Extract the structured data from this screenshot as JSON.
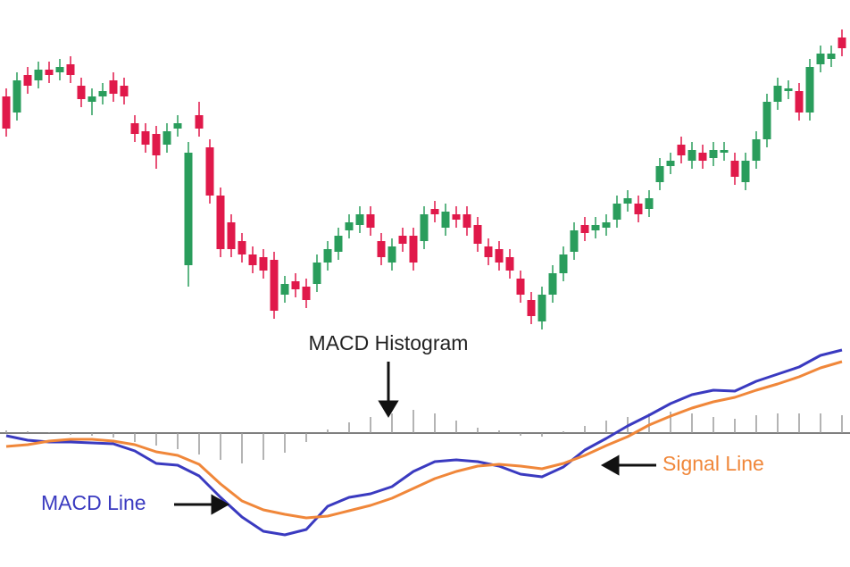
{
  "chart_data": [
    {
      "type": "candlestick",
      "colors": {
        "up": "#2a9d5c",
        "down": "#e0194a"
      },
      "ylim": [
        0,
        110
      ],
      "open": [
        84,
        78,
        92,
        90,
        94,
        93,
        96,
        88,
        82,
        84,
        90,
        88,
        74,
        71,
        70,
        66,
        72,
        21,
        77,
        65,
        47,
        37,
        30,
        25,
        24,
        23,
        10,
        15,
        13,
        14,
        22,
        26,
        34,
        36,
        40,
        30,
        22,
        32,
        32,
        30,
        42,
        35,
        40,
        40,
        36,
        28,
        27,
        24,
        16,
        8,
        0,
        10,
        18,
        26,
        36,
        34,
        35,
        38,
        44,
        44,
        42,
        52,
        58,
        66,
        60,
        63,
        61,
        63,
        60,
        52,
        60,
        68,
        82,
        86,
        86,
        78,
        96,
        98,
        106
      ],
      "high": [
        87,
        93,
        95,
        97,
        97,
        98,
        99,
        91,
        87,
        89,
        93,
        91,
        77,
        74,
        73,
        74,
        77,
        67,
        82,
        68,
        50,
        40,
        33,
        28,
        27,
        26,
        17,
        18,
        16,
        25,
        30,
        35,
        40,
        43,
        43,
        33,
        31,
        35,
        35,
        43,
        45,
        44,
        43,
        43,
        39,
        31,
        30,
        27,
        19,
        11,
        13,
        21,
        28,
        37,
        39,
        39,
        40,
        47,
        49,
        47,
        49,
        61,
        63,
        69,
        67,
        66,
        67,
        67,
        63,
        63,
        71,
        85,
        91,
        90,
        89,
        98,
        103,
        103,
        109
      ],
      "low": [
        69,
        75,
        85,
        87,
        89,
        90,
        89,
        80,
        77,
        81,
        82,
        81,
        67,
        63,
        57,
        63,
        69,
        13,
        69,
        44,
        24,
        24,
        22,
        18,
        16,
        1,
        7,
        9,
        5,
        11,
        19,
        23,
        31,
        33,
        32,
        21,
        19,
        26,
        19,
        27,
        37,
        32,
        35,
        32,
        26,
        21,
        19,
        16,
        7,
        -1,
        -3,
        7,
        15,
        23,
        30,
        31,
        32,
        35,
        41,
        37,
        39,
        49,
        55,
        59,
        57,
        57,
        58,
        60,
        51,
        49,
        57,
        65,
        79,
        83,
        75,
        75,
        93,
        95,
        99
      ],
      "close": [
        72,
        90,
        88,
        94,
        92,
        95,
        92,
        83,
        84,
        86,
        85,
        84,
        70,
        66,
        62,
        71,
        74,
        63,
        72,
        47,
        27,
        27,
        25,
        21,
        19,
        4,
        14,
        12,
        8,
        22,
        27,
        32,
        37,
        40,
        35,
        24,
        28,
        29,
        22,
        40,
        40,
        41,
        38,
        35,
        29,
        24,
        22,
        19,
        10,
        2,
        10,
        18,
        25,
        34,
        33,
        36,
        37,
        44,
        46,
        40,
        46,
        58,
        60,
        62,
        64,
        60,
        64,
        64,
        54,
        60,
        68,
        82,
        88,
        87,
        78,
        95,
        100,
        100,
        102
      ]
    },
    {
      "type": "macd",
      "ylim": [
        -130,
        110
      ],
      "series": [
        {
          "name": "MACD Histogram",
          "color": "#9a9a9a",
          "values": [
            3,
            2,
            1,
            -2,
            -3,
            -5,
            -10,
            -14,
            -18,
            -24,
            -30,
            -34,
            -30,
            -22,
            -10,
            4,
            12,
            18,
            22,
            26,
            22,
            14,
            6,
            3,
            -3,
            -4,
            2,
            8,
            14,
            18,
            22,
            24,
            22,
            18,
            16,
            20,
            22,
            22,
            22,
            20
          ]
        },
        {
          "name": "MACD Line",
          "color": "#3a3ac0",
          "values": [
            -3,
            -8,
            -10,
            -10,
            -11,
            -12,
            -20,
            -34,
            -36,
            -48,
            -72,
            -94,
            -110,
            -114,
            -108,
            -82,
            -72,
            -68,
            -60,
            -43,
            -32,
            -30,
            -32,
            -37,
            -46,
            -49,
            -38,
            -19,
            -6,
            8,
            20,
            33,
            43,
            48,
            47,
            58,
            66,
            74,
            87,
            93
          ]
        },
        {
          "name": "Signal Line",
          "color": "#f0873a",
          "values": [
            -15,
            -13,
            -9,
            -7,
            -7,
            -9,
            -13,
            -21,
            -25,
            -35,
            -57,
            -76,
            -86,
            -91,
            -95,
            -93,
            -87,
            -81,
            -73,
            -62,
            -51,
            -43,
            -37,
            -35,
            -37,
            -40,
            -34,
            -25,
            -14,
            -4,
            9,
            19,
            28,
            35,
            40,
            48,
            55,
            63,
            73,
            80
          ]
        }
      ]
    }
  ]
}
